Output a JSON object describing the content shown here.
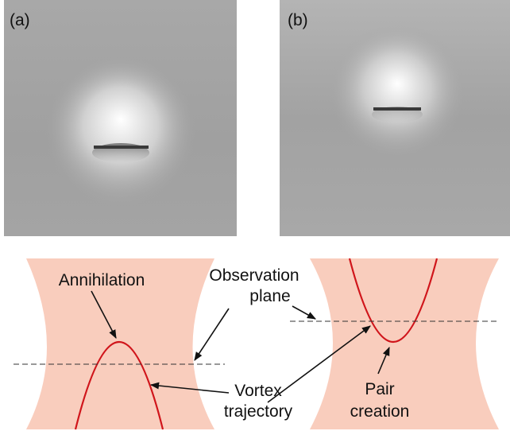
{
  "panels": [
    {
      "label": "(a)"
    },
    {
      "label": "(b)"
    }
  ],
  "annotations": {
    "annihilation": "Annihilation",
    "observation": [
      "Observation",
      "plane"
    ],
    "vortex": [
      "Vortex",
      "trajectory"
    ],
    "pair": [
      "Pair",
      "creation"
    ]
  }
}
